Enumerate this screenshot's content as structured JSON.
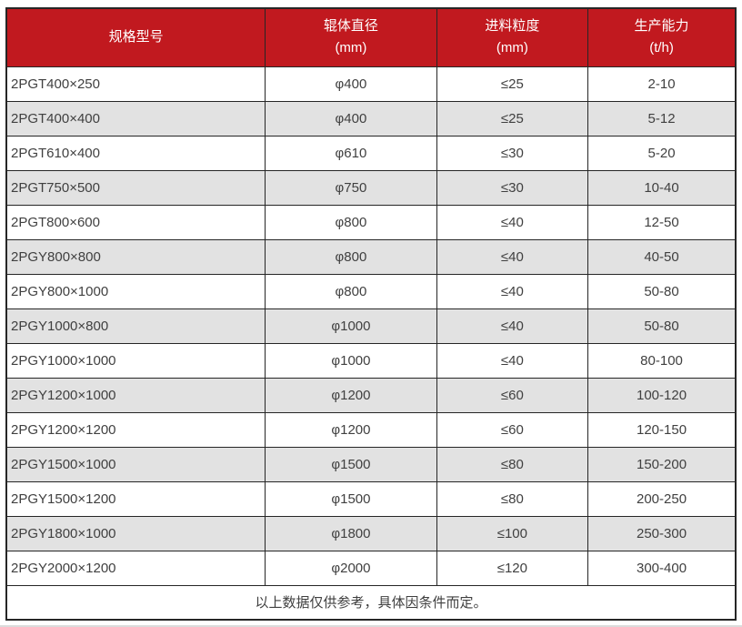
{
  "chart_data": {
    "type": "table",
    "columns": [
      {
        "title": "规格型号",
        "unit": ""
      },
      {
        "title": "辊体直径",
        "unit": "(mm)"
      },
      {
        "title": "进料粒度",
        "unit": "(mm)"
      },
      {
        "title": "生产能力",
        "unit": "(t/h)"
      }
    ],
    "rows": [
      [
        "2PGT400×250",
        "φ400",
        "≤25",
        "2-10"
      ],
      [
        "2PGT400×400",
        "φ400",
        "≤25",
        "5-12"
      ],
      [
        "2PGT610×400",
        "φ610",
        "≤30",
        "5-20"
      ],
      [
        "2PGT750×500",
        "φ750",
        "≤30",
        "10-40"
      ],
      [
        "2PGT800×600",
        "φ800",
        "≤40",
        "12-50"
      ],
      [
        "2PGY800×800",
        "φ800",
        "≤40",
        "40-50"
      ],
      [
        "2PGY800×1000",
        "φ800",
        "≤40",
        "50-80"
      ],
      [
        "2PGY1000×800",
        "φ1000",
        "≤40",
        "50-80"
      ],
      [
        "2PGY1000×1000",
        "φ1000",
        "≤40",
        "80-100"
      ],
      [
        "2PGY1200×1000",
        "φ1200",
        "≤60",
        "100-120"
      ],
      [
        "2PGY1200×1200",
        "φ1200",
        "≤60",
        "120-150"
      ],
      [
        "2PGY1500×1000",
        "φ1500",
        "≤80",
        "150-200"
      ],
      [
        "2PGY1500×1200",
        "φ1500",
        "≤80",
        "200-250"
      ],
      [
        "2PGY1800×1000",
        "φ1800",
        "≤100",
        "250-300"
      ],
      [
        "2PGY2000×1200",
        "φ2000",
        "≤120",
        "300-400"
      ]
    ],
    "footer_note": "以上数据仅供参考，具体因条件而定。"
  },
  "colors": {
    "header_bg": "#C1191F",
    "header_text": "#FFFFFF",
    "row_alt_bg": "#E2E2E2",
    "border": "#262626",
    "text": "#404040"
  }
}
